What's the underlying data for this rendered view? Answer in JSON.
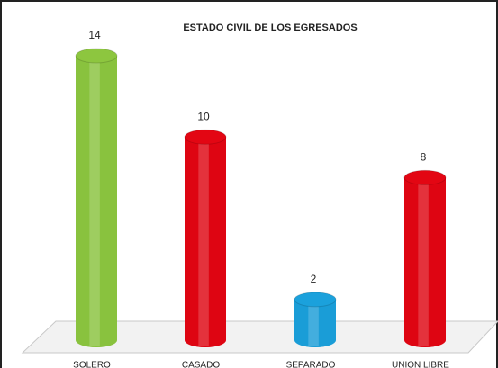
{
  "chart_data": {
    "type": "bar",
    "title": "ESTADO CIVIL DE LOS EGRESADOS",
    "categories": [
      "SOLERO",
      "CASADO",
      "SEPARADO",
      "UNION LIBRE"
    ],
    "values": [
      14,
      10,
      2,
      8
    ],
    "colors": [
      "#8dc63f",
      "#e30613",
      "#1ba1dc",
      "#e30613"
    ]
  }
}
